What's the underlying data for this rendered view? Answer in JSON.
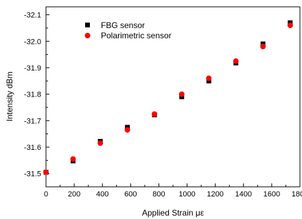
{
  "chart_data": {
    "type": "scatter",
    "title": "",
    "xlabel": "Applied Strain με",
    "ylabel": "Intensity dBm",
    "xlim": [
      0,
      1800
    ],
    "ylim": [
      -31.45,
      -32.13
    ],
    "y_axis_inverted": true,
    "x_ticks": [
      0,
      200,
      400,
      600,
      800,
      1000,
      1200,
      1400,
      1600,
      1800
    ],
    "x_tick_labels": [
      "0",
      "200",
      "400",
      "600",
      "800",
      "1000",
      "1200",
      "1400",
      "1600",
      "1800"
    ],
    "y_ticks": [
      -31.5,
      -31.6,
      -31.7,
      -31.8,
      -31.9,
      -32.0,
      -32.1
    ],
    "y_tick_labels": [
      "-31.5",
      "-31.6",
      "-31.7",
      "-31.8",
      "-31.9",
      "-32.0",
      "-32.1"
    ],
    "grid": false,
    "legend_position": "top-left",
    "series": [
      {
        "name": "FBG sensor",
        "marker": "square",
        "color": "#000000",
        "x": [
          0,
          192,
          385,
          577,
          769,
          962,
          1154,
          1346,
          1538,
          1731
        ],
        "y": [
          -31.505,
          -31.548,
          -31.622,
          -31.675,
          -31.722,
          -31.79,
          -31.85,
          -31.918,
          -31.99,
          -32.07
        ]
      },
      {
        "name": "Polarimetric sensor",
        "marker": "circle",
        "color": "#ff0000",
        "x": [
          0,
          192,
          385,
          577,
          769,
          962,
          1154,
          1346,
          1538,
          1731
        ],
        "y": [
          -31.505,
          -31.555,
          -31.615,
          -31.665,
          -31.725,
          -31.8,
          -31.86,
          -31.925,
          -31.98,
          -32.06
        ]
      }
    ]
  }
}
